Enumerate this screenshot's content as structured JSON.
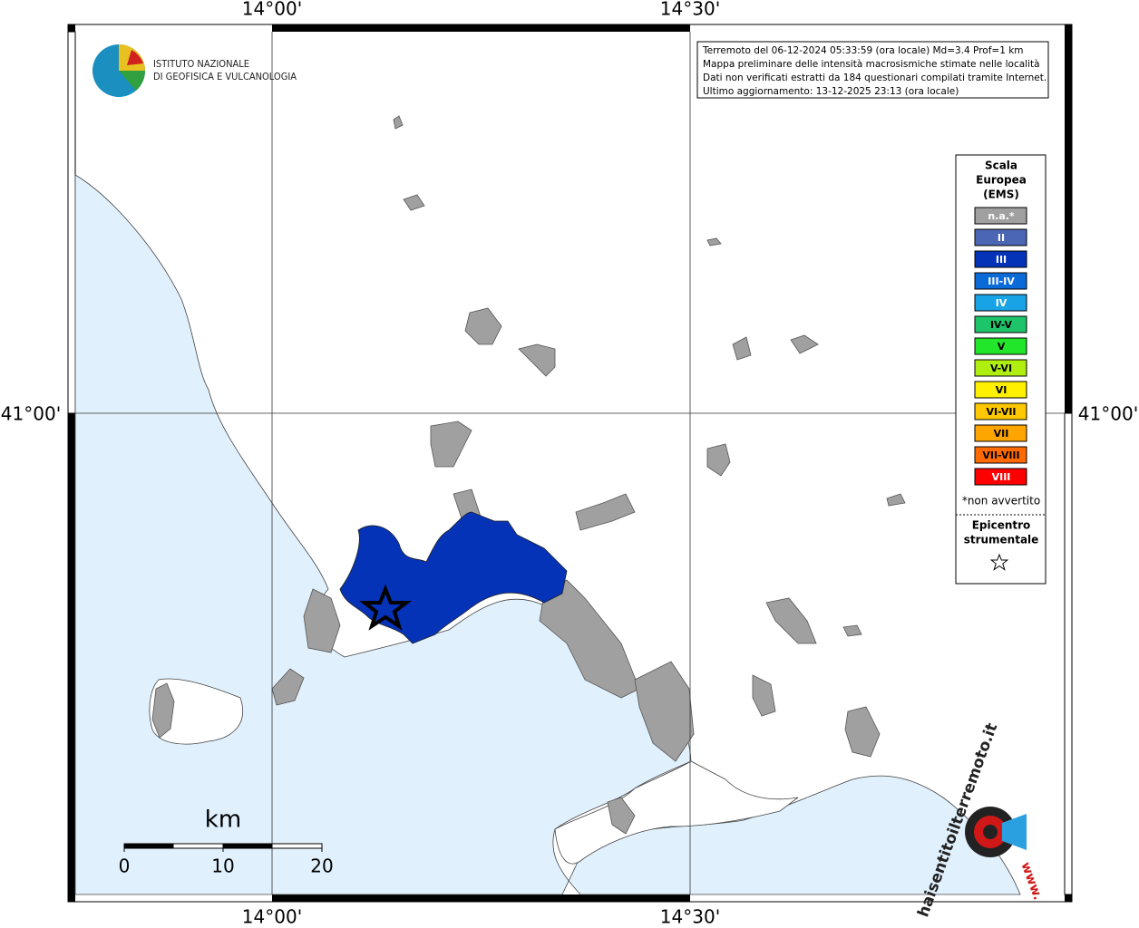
{
  "map": {
    "grid_labels": {
      "lon": [
        "14°00'",
        "14°30'"
      ],
      "lat": [
        "41°00'"
      ]
    },
    "info": [
      "Terremoto del 06-12-2024 05:33:59 (ora locale) Md=3.4 Prof=1 km",
      "Mappa preliminare delle intensità macrosismiche stimate nelle località",
      "Dati non verificati estratti da 184 questionari compilati tramite Internet.",
      "Ultimo aggiornamento: 13-12-2025 23:13 (ora locale)"
    ],
    "logo": [
      "ISTITUTO NAZIONALE",
      "DI GEOFISICA E VULCANOLOGIA"
    ],
    "legend": {
      "title": [
        "Scala",
        "Europea",
        "(EMS)"
      ],
      "items": [
        {
          "label": "n.a.*",
          "color": "#a0a0a0",
          "text_color": "#ffffff"
        },
        {
          "label": "II",
          "color": "#4a66b4",
          "text_color": "#ffffff"
        },
        {
          "label": "III",
          "color": "#0533b8",
          "text_color": "#ffffff"
        },
        {
          "label": "III-IV",
          "color": "#0a6bd8",
          "text_color": "#ffffff"
        },
        {
          "label": "IV",
          "color": "#18a3e6",
          "text_color": "#ffffff"
        },
        {
          "label": "IV-V",
          "color": "#1ec46a",
          "text_color": "#000000"
        },
        {
          "label": "V",
          "color": "#22e62a",
          "text_color": "#000000"
        },
        {
          "label": "V-VI",
          "color": "#b0ee10",
          "text_color": "#000000"
        },
        {
          "label": "VI",
          "color": "#fff000",
          "text_color": "#000000"
        },
        {
          "label": "VI-VII",
          "color": "#ffc800",
          "text_color": "#000000"
        },
        {
          "label": "VII",
          "color": "#ffa500",
          "text_color": "#000000"
        },
        {
          "label": "VII-VIII",
          "color": "#ff6a00",
          "text_color": "#000000"
        },
        {
          "label": "VIII",
          "color": "#ff0000",
          "text_color": "#ffffff"
        }
      ],
      "note": "*non avvertito",
      "epicenter": [
        "Epicentro",
        "strumentale"
      ]
    },
    "scale": {
      "unit": "km",
      "ticks": [
        0,
        10,
        20
      ]
    },
    "watermark": {
      "text": "haisentitoilterremoto.it",
      "prefix": "www."
    }
  }
}
